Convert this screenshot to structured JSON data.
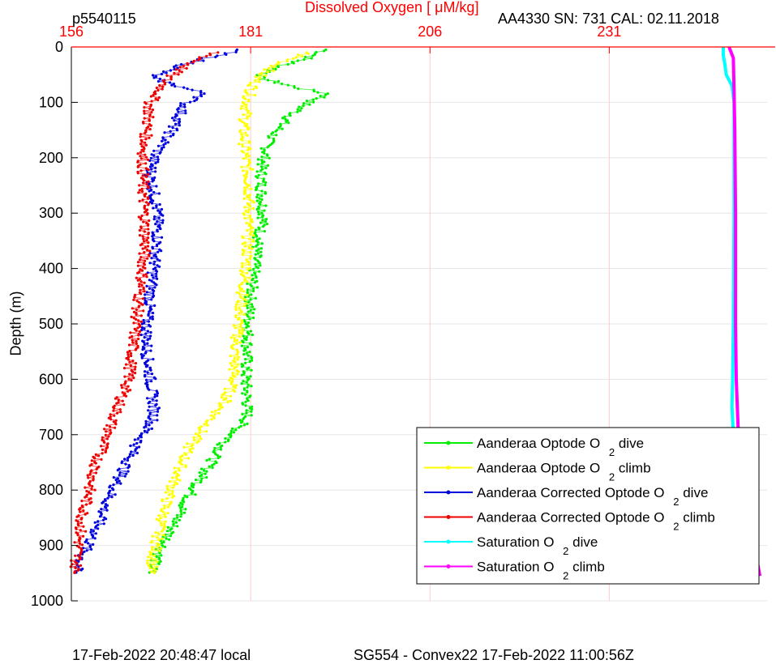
{
  "chart_data": {
    "type": "line",
    "title": "Dissolved Oxygen [   μM/kg]",
    "top_left_label": "p5540115",
    "top_right_label": "AA4330   SN: 731   CAL: 02.11.2018",
    "footer_left": "17-Feb-2022 20:48:47 local",
    "footer_right": "SG554 - Convex22 17-Feb-2022 11:00:56Z",
    "ylabel": "Depth (m)",
    "xlim": [
      156,
      253
    ],
    "ylim": [
      0,
      1000
    ],
    "y_reversed": true,
    "x_axis_position": "top",
    "x_tick_labels": [
      "156",
      "181",
      "206",
      "231"
    ],
    "y_tick_labels": [
      "0",
      "100",
      "200",
      "300",
      "400",
      "500",
      "600",
      "700",
      "800",
      "900",
      "1000"
    ],
    "grid": true,
    "legend_position": "bottom-right",
    "colors": {
      "title": "#ff0000",
      "x_ticks": "#ff0000",
      "vertical_grid": "#ffcccc",
      "horizontal_grid": "#e6e6e6",
      "zero_line": "#ff0000"
    },
    "series": [
      {
        "name": "Aanderaa Optode O 2 dive",
        "color": "#00ee00",
        "points": [
          [
            191.5,
            5
          ],
          [
            189,
            20
          ],
          [
            185,
            35
          ],
          [
            182,
            55
          ],
          [
            188,
            75
          ],
          [
            192,
            85
          ],
          [
            189,
            100
          ],
          [
            186,
            130
          ],
          [
            183.5,
            170
          ],
          [
            182.5,
            220
          ],
          [
            182.5,
            260
          ],
          [
            182.8,
            310
          ],
          [
            182,
            350
          ],
          [
            181.5,
            400
          ],
          [
            181,
            450
          ],
          [
            180.7,
            500
          ],
          [
            180.5,
            550
          ],
          [
            180.3,
            600
          ],
          [
            180.5,
            640
          ],
          [
            180.5,
            670
          ],
          [
            177,
            720
          ],
          [
            174.5,
            770
          ],
          [
            172,
            820
          ],
          [
            170,
            870
          ],
          [
            168,
            920
          ],
          [
            167,
            950
          ]
        ]
      },
      {
        "name": "Aanderaa Optode O 2 climb",
        "color": "#ffff00",
        "points": [
          [
            189,
            10
          ],
          [
            185,
            30
          ],
          [
            182,
            55
          ],
          [
            181,
            80
          ],
          [
            180.5,
            100
          ],
          [
            180,
            150
          ],
          [
            180.3,
            200
          ],
          [
            180.8,
            250
          ],
          [
            180.7,
            300
          ],
          [
            180.6,
            350
          ],
          [
            180.4,
            400
          ],
          [
            179.8,
            450
          ],
          [
            179.3,
            500
          ],
          [
            178.8,
            550
          ],
          [
            178.6,
            600
          ],
          [
            177.5,
            640
          ],
          [
            175,
            680
          ],
          [
            172.5,
            720
          ],
          [
            170.5,
            780
          ],
          [
            169.3,
            820
          ],
          [
            168.3,
            870
          ],
          [
            167.5,
            920
          ],
          [
            167,
            950
          ]
        ]
      },
      {
        "name": "Aanderaa Corrected Optode O 2 dive",
        "color": "#0000dd",
        "points": [
          [
            179.5,
            5
          ],
          [
            175,
            20
          ],
          [
            171,
            35
          ],
          [
            167,
            55
          ],
          [
            172,
            75
          ],
          [
            175,
            85
          ],
          [
            172,
            100
          ],
          [
            170,
            150
          ],
          [
            167.5,
            200
          ],
          [
            167,
            230
          ],
          [
            168,
            300
          ],
          [
            168,
            350
          ],
          [
            167.5,
            400
          ],
          [
            167,
            450
          ],
          [
            166.5,
            500
          ],
          [
            166.5,
            550
          ],
          [
            167,
            600
          ],
          [
            167.5,
            650
          ],
          [
            167.5,
            670
          ],
          [
            165,
            720
          ],
          [
            163,
            770
          ],
          [
            161,
            820
          ],
          [
            159.5,
            870
          ],
          [
            157.5,
            920
          ],
          [
            156.5,
            950
          ]
        ]
      },
      {
        "name": "Aanderaa Corrected Optode O 2 climb",
        "color": "#ee0000",
        "points": [
          [
            176,
            10
          ],
          [
            172.5,
            30
          ],
          [
            169.5,
            55
          ],
          [
            168,
            85
          ],
          [
            167,
            100
          ],
          [
            166.5,
            150
          ],
          [
            166,
            200
          ],
          [
            166,
            250
          ],
          [
            166.2,
            300
          ],
          [
            166.3,
            350
          ],
          [
            166,
            400
          ],
          [
            165.5,
            450
          ],
          [
            165,
            500
          ],
          [
            164.5,
            550
          ],
          [
            164,
            600
          ],
          [
            162.5,
            650
          ],
          [
            161,
            700
          ],
          [
            159.5,
            750
          ],
          [
            158.5,
            800
          ],
          [
            157.5,
            850
          ],
          [
            157,
            900
          ],
          [
            156.5,
            950
          ]
        ]
      },
      {
        "name": "Saturation O 2 dive",
        "color": "#00ffff",
        "points": [
          [
            246.9,
            0
          ],
          [
            246.9,
            15
          ],
          [
            247.1,
            30
          ],
          [
            247.3,
            50
          ],
          [
            248.1,
            70
          ],
          [
            248.4,
            100
          ],
          [
            248.4,
            300
          ],
          [
            248.3,
            500
          ],
          [
            248.2,
            600
          ],
          [
            248.1,
            650
          ],
          [
            248.3,
            700
          ],
          [
            248.8,
            780
          ],
          [
            249.6,
            830
          ],
          [
            250,
            880
          ],
          [
            250.8,
            930
          ],
          [
            251.2,
            955
          ]
        ]
      },
      {
        "name": "Saturation O 2 climb",
        "color": "#ff00ff",
        "points": [
          [
            247.7,
            0
          ],
          [
            248.3,
            20
          ],
          [
            248.4,
            80
          ],
          [
            248.5,
            150
          ],
          [
            248.6,
            300
          ],
          [
            248.6,
            500
          ],
          [
            248.7,
            600
          ],
          [
            249,
            700
          ],
          [
            249.6,
            800
          ],
          [
            250.3,
            850
          ],
          [
            251.2,
            900
          ],
          [
            252,
            955
          ]
        ]
      }
    ]
  }
}
